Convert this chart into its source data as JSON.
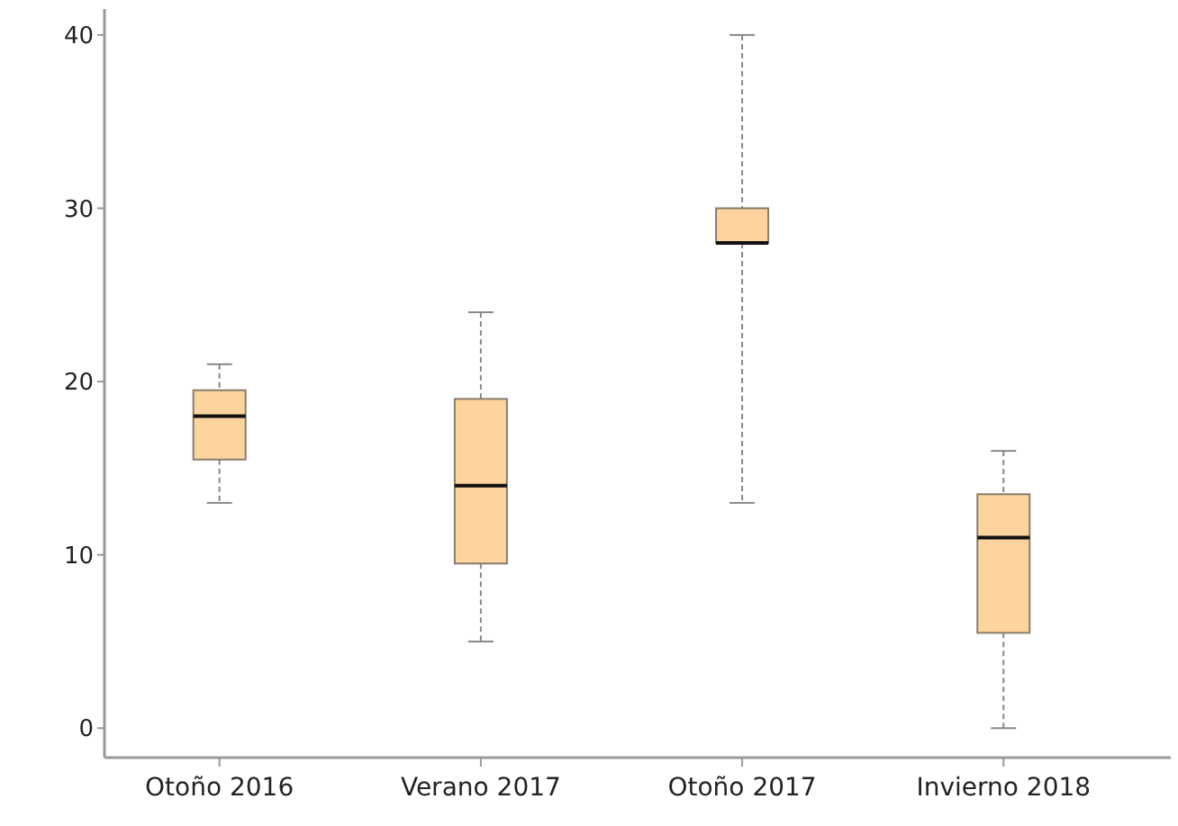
{
  "chart_data": {
    "type": "box",
    "categories": [
      "Otoño 2016",
      "Verano 2017",
      "Otoño 2017",
      "Invierno 2018"
    ],
    "color": "#fdd49e",
    "boxes": [
      {
        "low": 13,
        "q1": 15.5,
        "median": 18,
        "q3": 19.5,
        "high": 21
      },
      {
        "low": 5,
        "q1": 9.5,
        "median": 14,
        "q3": 19,
        "high": 24
      },
      {
        "low": 13,
        "q1": 28,
        "median": 28,
        "q3": 30,
        "high": 40
      },
      {
        "low": 0,
        "q1": 5.5,
        "median": 11,
        "q3": 13.5,
        "high": 16
      }
    ],
    "ylim": [
      -1.7,
      41.5
    ],
    "yticks": [
      0,
      10,
      20,
      30,
      40
    ],
    "grid": false
  }
}
